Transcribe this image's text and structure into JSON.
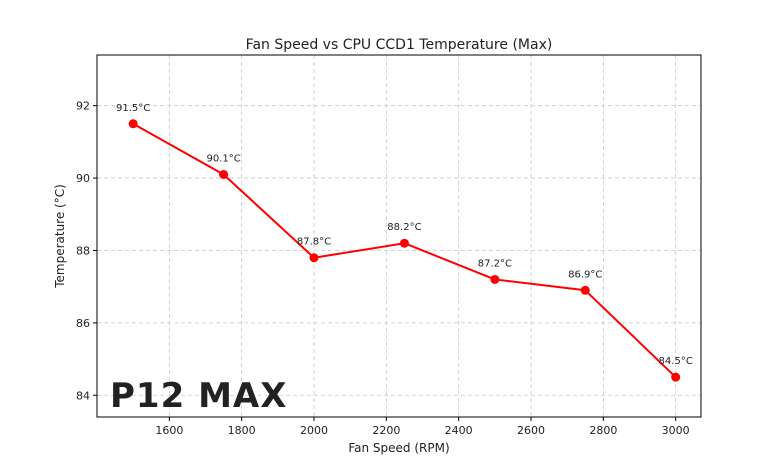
{
  "chart_data": {
    "type": "line",
    "title": "Fan Speed vs CPU CCD1 Temperature (Max)",
    "xlabel": "Fan Speed (RPM)",
    "ylabel": "Temperature (°C)",
    "xlim": [
      1400,
      3070
    ],
    "ylim": [
      83.4,
      93.4
    ],
    "x_ticks": [
      "1600",
      "1800",
      "2000",
      "2200",
      "2400",
      "2600",
      "2800",
      "3000"
    ],
    "y_ticks": [
      "84",
      "86",
      "88",
      "90",
      "92"
    ],
    "grid": true,
    "series": [
      {
        "x": [
          1500,
          1750,
          2000,
          2250,
          2500,
          2750,
          3000
        ],
        "values": [
          91.5,
          90.1,
          87.8,
          88.2,
          87.2,
          86.9,
          84.5
        ],
        "labels": [
          "91.5°C",
          "90.1°C",
          "87.8°C",
          "88.2°C",
          "87.2°C",
          "86.9°C",
          "84.5°C"
        ],
        "color": "#ff0000"
      }
    ]
  },
  "watermark": {
    "text": "P12 MAX",
    "color": "#e8141e"
  }
}
